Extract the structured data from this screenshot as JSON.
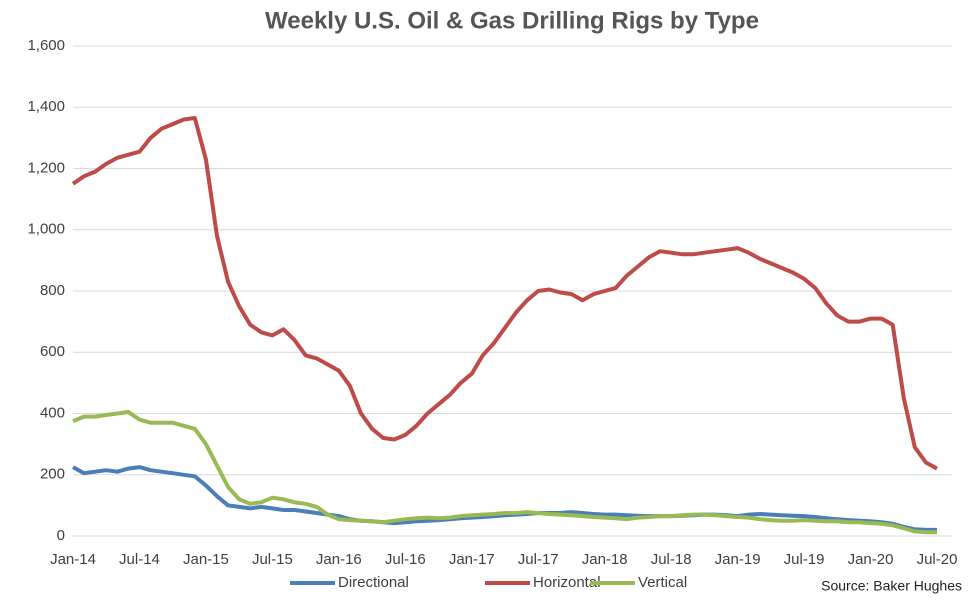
{
  "chart_data": {
    "type": "line",
    "title": "Weekly U.S. Oil & Gas Drilling Rigs by Type",
    "source": "Source: Baker Hughes",
    "categories": [
      "Jan-14",
      null,
      null,
      null,
      null,
      null,
      "Jul-14",
      null,
      null,
      null,
      null,
      null,
      "Jan-15",
      null,
      null,
      null,
      null,
      null,
      "Jul-15",
      null,
      null,
      null,
      null,
      null,
      "Jan-16",
      null,
      null,
      null,
      null,
      null,
      "Jul-16",
      null,
      null,
      null,
      null,
      null,
      "Jan-17",
      null,
      null,
      null,
      null,
      null,
      "Jul-17",
      null,
      null,
      null,
      null,
      null,
      "Jan-18",
      null,
      null,
      null,
      null,
      null,
      "Jul-18",
      null,
      null,
      null,
      null,
      null,
      "Jan-19",
      null,
      null,
      null,
      null,
      null,
      "Jul-19",
      null,
      null,
      null,
      null,
      null,
      "Jan-20",
      null,
      null,
      null,
      null,
      null,
      "Jul-20"
    ],
    "series": [
      {
        "name": "Directional",
        "color": "#4a7ebb",
        "values": [
          225,
          205,
          210,
          215,
          210,
          220,
          225,
          215,
          210,
          205,
          200,
          195,
          165,
          130,
          100,
          95,
          90,
          95,
          90,
          85,
          85,
          80,
          75,
          70,
          65,
          55,
          50,
          48,
          45,
          42,
          45,
          48,
          50,
          52,
          55,
          58,
          60,
          62,
          65,
          68,
          70,
          72,
          75,
          75,
          75,
          78,
          75,
          72,
          70,
          70,
          68,
          66,
          65,
          65,
          65,
          66,
          68,
          70,
          70,
          68,
          65,
          70,
          72,
          70,
          68,
          66,
          65,
          62,
          58,
          55,
          52,
          50,
          48,
          45,
          40,
          30,
          22,
          20,
          20
        ]
      },
      {
        "name": "Horizontal",
        "color": "#be4b48",
        "values": [
          1150,
          1175,
          1190,
          1215,
          1235,
          1245,
          1255,
          1300,
          1330,
          1345,
          1360,
          1365,
          1230,
          980,
          830,
          750,
          690,
          665,
          655,
          675,
          640,
          590,
          580,
          560,
          540,
          490,
          400,
          350,
          320,
          315,
          330,
          360,
          400,
          430,
          460,
          500,
          530,
          590,
          630,
          680,
          730,
          770,
          800,
          805,
          795,
          790,
          770,
          790,
          800,
          810,
          850,
          880,
          910,
          930,
          925,
          920,
          920,
          925,
          930,
          935,
          940,
          925,
          905,
          890,
          875,
          860,
          840,
          810,
          760,
          720,
          700,
          700,
          710,
          710,
          690,
          450,
          290,
          240,
          220
        ]
      },
      {
        "name": "Vertical",
        "color": "#98b954",
        "values": [
          375,
          390,
          390,
          395,
          400,
          405,
          380,
          370,
          370,
          370,
          360,
          350,
          300,
          230,
          160,
          120,
          105,
          110,
          125,
          120,
          110,
          105,
          95,
          70,
          55,
          52,
          50,
          48,
          45,
          50,
          55,
          58,
          60,
          58,
          60,
          65,
          68,
          70,
          72,
          75,
          75,
          78,
          75,
          72,
          70,
          68,
          65,
          62,
          60,
          58,
          55,
          60,
          62,
          65,
          65,
          68,
          70,
          70,
          68,
          65,
          62,
          60,
          55,
          52,
          50,
          50,
          52,
          50,
          48,
          48,
          45,
          45,
          42,
          40,
          35,
          25,
          15,
          12,
          12
        ]
      }
    ],
    "ylim": [
      0,
      1600
    ],
    "yticks": [
      0,
      200,
      400,
      600,
      800,
      {
        "value": 1000,
        "label": "1,000"
      },
      {
        "value": 1200,
        "label": "1,200"
      },
      {
        "value": 1400,
        "label": "1,400"
      },
      {
        "value": 1600,
        "label": "1,600"
      }
    ],
    "grid": true
  }
}
